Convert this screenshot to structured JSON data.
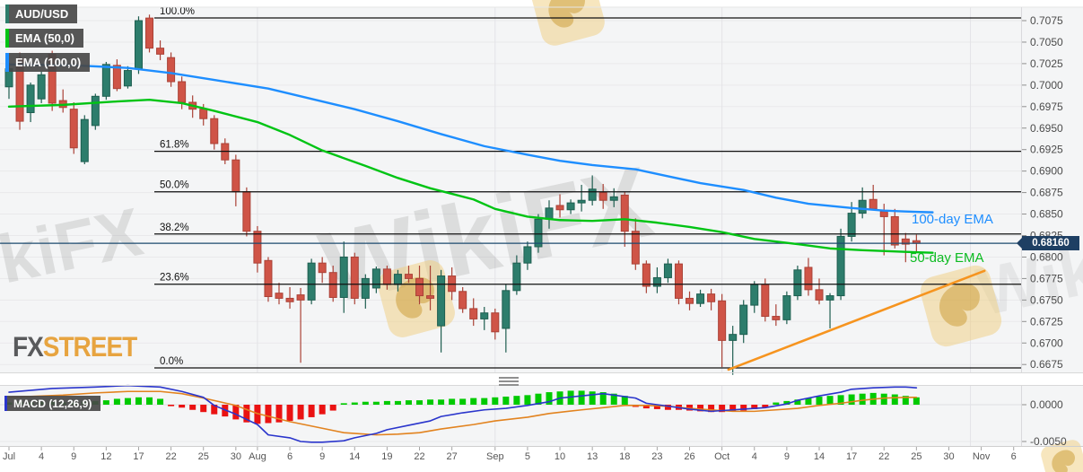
{
  "legend": {
    "symbol": "AUD/USD",
    "ema50": "EMA (50,0)",
    "ema100": "EMA (100,0)"
  },
  "indicator_label": "MACD (12,26,9)",
  "logo": {
    "fx": "FX",
    "street": "STREET"
  },
  "annotations": {
    "ema100": "100-day EMA",
    "ema50": "50-day EMA"
  },
  "price_badge": "0.68160",
  "watermark": {
    "text": "WikiFX"
  },
  "colors": {
    "panel_bg": "#f4f5f6",
    "strip_bg": "#ffffff",
    "up": "#2d7d6c",
    "up_stroke": "#1e5e50",
    "down": "#cf5447",
    "down_stroke": "#aa4237",
    "ema50": "#00c414",
    "ema100": "#1e8eff",
    "macd_line": "#2a35cc",
    "signal_line": "#e2831f",
    "hist_up": "#00ca00",
    "hist_down": "#ea1212",
    "trendline": "#f6941f",
    "fib": "#101010",
    "price_line": "#1c4a6e",
    "badge_bg": "#1e3f63",
    "grid_h": "#e9e9eb",
    "grid_v": "#e3e3e7",
    "axis_text": "#4b4b4b",
    "x_text": "#565656"
  },
  "chart_data": {
    "type": "candlestick",
    "symbol": "AUD/USD",
    "title": "AUD/USD daily candles with EMA(50), EMA(100), Fibonacci retracement and MACD(12,26,9)",
    "last_price": 0.6816,
    "price_axis_labels": [
      "0.7075",
      "0.7050",
      "0.7025",
      "0.7000",
      "0.6975",
      "0.6950",
      "0.6925",
      "0.6900",
      "0.6875",
      "0.6850",
      "0.6825",
      "0.6800",
      "0.6775",
      "0.6750",
      "0.6725",
      "0.6700",
      "0.6675"
    ],
    "price_axis_top": 0.7075,
    "price_axis_step": 0.0025,
    "macd_axis_labels": [
      "0.0000",
      "-0.0050"
    ],
    "fib_levels": [
      {
        "label": "100.0%",
        "price": 0.70781
      },
      {
        "label": "61.8%",
        "price": 0.6923
      },
      {
        "label": "50.0%",
        "price": 0.68759
      },
      {
        "label": "38.2%",
        "price": 0.68268
      },
      {
        "label": "23.6%",
        "price": 0.67684
      },
      {
        "label": "0.0%",
        "price": 0.6671
      }
    ],
    "x_ticks": [
      [
        0,
        "Jul"
      ],
      [
        3,
        "4"
      ],
      [
        6,
        "9"
      ],
      [
        9,
        "12"
      ],
      [
        12,
        "17"
      ],
      [
        15,
        "22"
      ],
      [
        18,
        "25"
      ],
      [
        21,
        "30"
      ],
      [
        23,
        "Aug"
      ],
      [
        26,
        "6"
      ],
      [
        29,
        "9"
      ],
      [
        32,
        "14"
      ],
      [
        35,
        "19"
      ],
      [
        38,
        "22"
      ],
      [
        41,
        "27"
      ],
      [
        45,
        "Sep"
      ],
      [
        48,
        "5"
      ],
      [
        51,
        "10"
      ],
      [
        54,
        "13"
      ],
      [
        57,
        "18"
      ],
      [
        60,
        "23"
      ],
      [
        63,
        "26"
      ],
      [
        66,
        "Oct"
      ],
      [
        69,
        "4"
      ],
      [
        72,
        "9"
      ],
      [
        75,
        "14"
      ],
      [
        78,
        "17"
      ],
      [
        81,
        "22"
      ],
      [
        84,
        "25"
      ],
      [
        87,
        "30"
      ],
      [
        90,
        "Nov"
      ],
      [
        93,
        "6"
      ]
    ],
    "month_gridlines": [
      23,
      45,
      66,
      89
    ],
    "candles": [
      [
        "Jul 1",
        0.6998,
        0.7026,
        0.6984,
        0.7019
      ],
      [
        "Jul 2",
        0.7031,
        0.7038,
        0.6948,
        0.6958
      ],
      [
        "Jul 3",
        0.6968,
        0.7003,
        0.6957,
        0.7
      ],
      [
        "Jul 4",
        0.6984,
        0.7016,
        0.6979,
        0.7012
      ],
      [
        "Jul 5",
        0.7036,
        0.704,
        0.697,
        0.6979
      ],
      [
        "Jul 8",
        0.6982,
        0.6995,
        0.6968,
        0.6974
      ],
      [
        "Jul 9",
        0.6972,
        0.698,
        0.692,
        0.6927
      ],
      [
        "Jul 10",
        0.6911,
        0.6965,
        0.6908,
        0.696
      ],
      [
        "Jul 11",
        0.6953,
        0.699,
        0.6948,
        0.6987
      ],
      [
        "Jul 12",
        0.6987,
        0.7027,
        0.6983,
        0.7024
      ],
      [
        "Jul 15",
        0.7023,
        0.703,
        0.6993,
        0.6996
      ],
      [
        "Jul 16",
        0.6999,
        0.7022,
        0.6996,
        0.7017
      ],
      [
        "Jul 17",
        0.7019,
        0.708,
        0.7013,
        0.7075
      ],
      [
        "Jul 18",
        0.7078,
        0.7082,
        0.7038,
        0.7043
      ],
      [
        "Jul 19",
        0.7043,
        0.7052,
        0.7029,
        0.7036
      ],
      [
        "Jul 22",
        0.7032,
        0.7038,
        0.6998,
        0.7004
      ],
      [
        "Jul 23",
        0.7004,
        0.701,
        0.6972,
        0.698
      ],
      [
        "Jul 24",
        0.698,
        0.6988,
        0.6962,
        0.6972
      ],
      [
        "Jul 25",
        0.6972,
        0.6978,
        0.6953,
        0.6961
      ],
      [
        "Jul 26",
        0.6961,
        0.6965,
        0.6925,
        0.6932
      ],
      [
        "Jul 29",
        0.6932,
        0.6938,
        0.6908,
        0.6913
      ],
      [
        "Jul 30",
        0.6913,
        0.6919,
        0.6859,
        0.6876
      ],
      [
        "Jul 31",
        0.6876,
        0.6881,
        0.6824,
        0.683
      ],
      [
        "Aug 1",
        0.683,
        0.6836,
        0.6782,
        0.6793
      ],
      [
        "Aug 2",
        0.6796,
        0.68,
        0.6748,
        0.6754
      ],
      [
        "Aug 5",
        0.6758,
        0.677,
        0.6745,
        0.6752
      ],
      [
        "Aug 6",
        0.6752,
        0.6765,
        0.674,
        0.6748
      ],
      [
        "Aug 7",
        0.6756,
        0.6764,
        0.6677,
        0.675
      ],
      [
        "Aug 8",
        0.675,
        0.6798,
        0.6745,
        0.6793
      ],
      [
        "Aug 9",
        0.6793,
        0.68,
        0.677,
        0.6782
      ],
      [
        "Aug 12",
        0.6782,
        0.679,
        0.6748,
        0.6753
      ],
      [
        "Aug 13",
        0.6753,
        0.6818,
        0.6735,
        0.68
      ],
      [
        "Aug 14",
        0.68,
        0.6805,
        0.6745,
        0.6752
      ],
      [
        "Aug 15",
        0.6752,
        0.678,
        0.674,
        0.6775
      ],
      [
        "Aug 16",
        0.6764,
        0.6789,
        0.6758,
        0.6786
      ],
      [
        "Aug 19",
        0.6786,
        0.679,
        0.6762,
        0.6768
      ],
      [
        "Aug 20",
        0.6768,
        0.6785,
        0.676,
        0.678
      ],
      [
        "Aug 21",
        0.678,
        0.679,
        0.677,
        0.6775
      ],
      [
        "Aug 22",
        0.6775,
        0.679,
        0.6745,
        0.6755
      ],
      [
        "Aug 23",
        0.6755,
        0.679,
        0.6738,
        0.6752
      ],
      [
        "Aug 26",
        0.672,
        0.6785,
        0.6689,
        0.6778
      ],
      [
        "Aug 27",
        0.6778,
        0.6788,
        0.675,
        0.676
      ],
      [
        "Aug 28",
        0.676,
        0.6765,
        0.6735,
        0.674
      ],
      [
        "Aug 29",
        0.674,
        0.6752,
        0.672,
        0.6728
      ],
      [
        "Aug 30",
        0.6728,
        0.6742,
        0.6715,
        0.6735
      ],
      [
        "Sep 2",
        0.6735,
        0.674,
        0.6704,
        0.6713
      ],
      [
        "Sep 3",
        0.6717,
        0.6768,
        0.6689,
        0.6761
      ],
      [
        "Sep 4",
        0.6761,
        0.6802,
        0.6756,
        0.6793
      ],
      [
        "Sep 5",
        0.6793,
        0.6818,
        0.6785,
        0.6812
      ],
      [
        "Sep 6",
        0.6812,
        0.685,
        0.6805,
        0.6844
      ],
      [
        "Sep 9",
        0.6844,
        0.6866,
        0.6833,
        0.6857
      ],
      [
        "Sep 10",
        0.686,
        0.6873,
        0.6846,
        0.6855
      ],
      [
        "Sep 11",
        0.6855,
        0.6867,
        0.685,
        0.6863
      ],
      [
        "Sep 12",
        0.6863,
        0.6884,
        0.6853,
        0.6866
      ],
      [
        "Sep 13",
        0.6866,
        0.6895,
        0.686,
        0.6879
      ],
      [
        "Sep 16",
        0.6875,
        0.6885,
        0.6856,
        0.6866
      ],
      [
        "Sep 17",
        0.6866,
        0.688,
        0.6858,
        0.687
      ],
      [
        "Sep 18",
        0.6872,
        0.6876,
        0.6812,
        0.683
      ],
      [
        "Sep 19",
        0.683,
        0.6845,
        0.6785,
        0.6792
      ],
      [
        "Sep 20",
        0.6792,
        0.6796,
        0.6758,
        0.6766
      ],
      [
        "Sep 23",
        0.6766,
        0.6788,
        0.6758,
        0.6776
      ],
      [
        "Sep 24",
        0.6776,
        0.6798,
        0.677,
        0.6792
      ],
      [
        "Sep 25",
        0.6792,
        0.6796,
        0.6745,
        0.6752
      ],
      [
        "Sep 26",
        0.6752,
        0.676,
        0.6738,
        0.6746
      ],
      [
        "Sep 27",
        0.6746,
        0.6762,
        0.6742,
        0.6757
      ],
      [
        "Sep 30",
        0.6757,
        0.6763,
        0.6738,
        0.6748
      ],
      [
        "Oct 1",
        0.6749,
        0.6757,
        0.6672,
        0.6703
      ],
      [
        "Oct 2",
        0.6703,
        0.672,
        0.6663,
        0.671
      ],
      [
        "Oct 3",
        0.671,
        0.675,
        0.67,
        0.6744
      ],
      [
        "Oct 4",
        0.6744,
        0.6772,
        0.6735,
        0.6768
      ],
      [
        "Oct 7",
        0.6768,
        0.6775,
        0.6725,
        0.6731
      ],
      [
        "Oct 8",
        0.6731,
        0.6745,
        0.672,
        0.6727
      ],
      [
        "Oct 9",
        0.6727,
        0.676,
        0.6722,
        0.6755
      ],
      [
        "Oct 10",
        0.6755,
        0.679,
        0.675,
        0.6785
      ],
      [
        "Oct 11",
        0.6788,
        0.6799,
        0.6755,
        0.6762
      ],
      [
        "Oct 14",
        0.6762,
        0.6775,
        0.6745,
        0.675
      ],
      [
        "Oct 15",
        0.675,
        0.6758,
        0.6717,
        0.6755
      ],
      [
        "Oct 16",
        0.6755,
        0.6833,
        0.675,
        0.6824
      ],
      [
        "Oct 17",
        0.6824,
        0.6864,
        0.6818,
        0.6851
      ],
      [
        "Oct 18",
        0.6851,
        0.6881,
        0.6845,
        0.6866
      ],
      [
        "Oct 21",
        0.6867,
        0.6884,
        0.6855,
        0.6856
      ],
      [
        "Oct 22",
        0.6853,
        0.6862,
        0.6802,
        0.6847
      ],
      [
        "Oct 23",
        0.6847,
        0.6856,
        0.681,
        0.6814
      ],
      [
        "Oct 24",
        0.6821,
        0.6828,
        0.6794,
        0.6815
      ],
      [
        "Oct 25",
        0.6819,
        0.6826,
        0.6806,
        0.6816
      ]
    ],
    "ema100": [
      [
        0,
        0.7024
      ],
      [
        6,
        0.7023
      ],
      [
        11,
        0.702
      ],
      [
        15,
        0.7014
      ],
      [
        19,
        0.7006
      ],
      [
        24,
        0.6996
      ],
      [
        28,
        0.6984
      ],
      [
        32,
        0.6972
      ],
      [
        36,
        0.6958
      ],
      [
        40,
        0.6943
      ],
      [
        44,
        0.6929
      ],
      [
        48,
        0.6919
      ],
      [
        51,
        0.6912
      ],
      [
        54,
        0.6907
      ],
      [
        58,
        0.6902
      ],
      [
        61,
        0.6894
      ],
      [
        64,
        0.6886
      ],
      [
        68,
        0.6878
      ],
      [
        71,
        0.6869
      ],
      [
        74,
        0.6862
      ],
      [
        78,
        0.6857
      ],
      [
        81,
        0.6854
      ],
      [
        83,
        0.6853
      ],
      [
        85.5,
        0.6852
      ]
    ],
    "ema50": [
      [
        0,
        0.6975
      ],
      [
        5,
        0.6977
      ],
      [
        10,
        0.6981
      ],
      [
        13,
        0.6983
      ],
      [
        16,
        0.6979
      ],
      [
        19,
        0.697
      ],
      [
        23,
        0.6957
      ],
      [
        26,
        0.6942
      ],
      [
        29,
        0.6924
      ],
      [
        33,
        0.6906
      ],
      [
        36,
        0.6892
      ],
      [
        39,
        0.688
      ],
      [
        43,
        0.6867
      ],
      [
        45,
        0.6856
      ],
      [
        48,
        0.6847
      ],
      [
        51,
        0.6843
      ],
      [
        54,
        0.6842
      ],
      [
        57,
        0.6844
      ],
      [
        60,
        0.684
      ],
      [
        63,
        0.6835
      ],
      [
        66,
        0.6829
      ],
      [
        69,
        0.6821
      ],
      [
        73,
        0.6815
      ],
      [
        76,
        0.681
      ],
      [
        79,
        0.6808
      ],
      [
        83,
        0.6806
      ],
      [
        85.5,
        0.6805
      ]
    ],
    "trendline": {
      "x1": 66.6,
      "p1": 0.6669,
      "x2": 90.3,
      "p2": 0.6784
    },
    "macd": {
      "histogram": [
        3,
        4,
        3,
        4,
        4,
        3,
        3,
        4,
        5,
        6,
        8,
        9,
        10,
        10,
        8,
        -2,
        -4,
        -7,
        -10,
        -13,
        -16,
        -20,
        -24,
        -26,
        -25,
        -24,
        -22,
        -20,
        -17,
        -13,
        -8,
        2,
        3,
        4,
        4,
        5,
        5,
        6,
        6,
        7,
        7,
        8,
        8,
        9,
        9,
        10,
        11,
        12,
        13,
        15,
        17,
        18,
        19,
        19,
        18,
        17,
        15,
        12,
        -3,
        -5,
        -6,
        -7,
        -7,
        -8,
        -9,
        -10,
        -10,
        -9,
        -8,
        -6,
        -4,
        3,
        5,
        7,
        9,
        11,
        12,
        13,
        14,
        15,
        16,
        15,
        14,
        12,
        10
      ],
      "macd_line": [
        [
          0,
          17
        ],
        [
          4,
          22
        ],
        [
          8,
          24
        ],
        [
          11,
          26
        ],
        [
          14,
          24
        ],
        [
          16,
          18
        ],
        [
          18,
          10
        ],
        [
          19,
          -1
        ],
        [
          21,
          -13
        ],
        [
          23,
          -27
        ],
        [
          24,
          -41
        ],
        [
          26,
          -45
        ],
        [
          27,
          -50
        ],
        [
          28,
          -51
        ],
        [
          29,
          -51
        ],
        [
          31,
          -49
        ],
        [
          32,
          -45
        ],
        [
          34,
          -39
        ],
        [
          35,
          -34
        ],
        [
          37,
          -28
        ],
        [
          39,
          -22
        ],
        [
          40,
          -16
        ],
        [
          42,
          -11
        ],
        [
          44,
          -7
        ],
        [
          46,
          -5
        ],
        [
          48,
          -1
        ],
        [
          50,
          4
        ],
        [
          51,
          9
        ],
        [
          53,
          12
        ],
        [
          55,
          15
        ],
        [
          56,
          13
        ],
        [
          58,
          9
        ],
        [
          59,
          2
        ],
        [
          61,
          -2
        ],
        [
          63,
          -6
        ],
        [
          65,
          -9
        ],
        [
          67,
          -7
        ],
        [
          68,
          -6
        ],
        [
          70,
          -4
        ],
        [
          72,
          1
        ],
        [
          73,
          6
        ],
        [
          75,
          12
        ],
        [
          77,
          17
        ],
        [
          78,
          21
        ],
        [
          80,
          23
        ],
        [
          82,
          24
        ],
        [
          83,
          24
        ],
        [
          84,
          23
        ]
      ],
      "signal_line": [
        [
          0,
          10
        ],
        [
          5,
          13
        ],
        [
          8,
          16
        ],
        [
          11,
          18
        ],
        [
          14,
          18
        ],
        [
          16,
          15
        ],
        [
          18,
          9
        ],
        [
          21,
          -1
        ],
        [
          23,
          -12
        ],
        [
          26,
          -23
        ],
        [
          29,
          -32
        ],
        [
          31,
          -38
        ],
        [
          33,
          -40
        ],
        [
          34,
          -41
        ],
        [
          36,
          -40
        ],
        [
          38,
          -38
        ],
        [
          40,
          -33
        ],
        [
          43,
          -27
        ],
        [
          45,
          -22
        ],
        [
          48,
          -17
        ],
        [
          50,
          -12
        ],
        [
          53,
          -7
        ],
        [
          55,
          -4
        ],
        [
          57,
          -1
        ],
        [
          59,
          -1
        ],
        [
          61,
          -2
        ],
        [
          63,
          -5
        ],
        [
          65,
          -7
        ],
        [
          67,
          -9
        ],
        [
          69,
          -9
        ],
        [
          71,
          -7
        ],
        [
          73,
          -5
        ],
        [
          75,
          -1
        ],
        [
          77,
          2
        ],
        [
          79,
          6
        ],
        [
          81,
          9
        ],
        [
          83,
          10
        ],
        [
          84,
          10
        ]
      ]
    }
  }
}
